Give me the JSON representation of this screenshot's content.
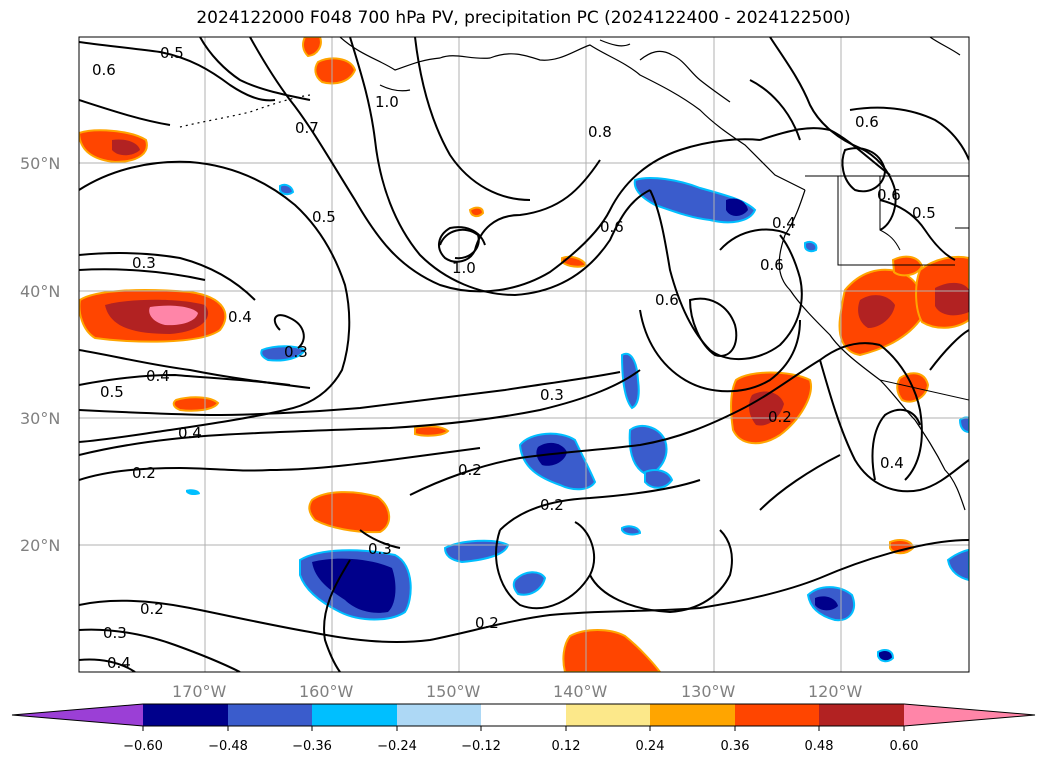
{
  "title": "2024122000 F048 700 hPa PV, precipitation PC (2024122400 - 2024122500)",
  "map": {
    "lon_labels": [
      "170°W",
      "160°W",
      "150°W",
      "140°W",
      "130°W",
      "120°W"
    ],
    "lat_labels": [
      "50°N",
      "40°N",
      "30°N",
      "20°N"
    ],
    "contour_labels": [
      "0.5",
      "0.6",
      "1.0",
      "0.7",
      "0.8",
      "0.6",
      "0.5",
      "1.0",
      "0.3",
      "0.4",
      "0.3",
      "0.4",
      "0.5",
      "0.4",
      "0.2",
      "0.6",
      "0.6",
      "0.4",
      "0.6",
      "0.3",
      "0.2",
      "0.2",
      "0.3",
      "0.2",
      "0.2",
      "0.3",
      "0.4",
      "0.6",
      "0.5",
      "0.2",
      "0.4"
    ]
  },
  "colorbar": {
    "colors": [
      "#9b3fd6",
      "#00008b",
      "#3a5ccc",
      "#00bfff",
      "#add8f5",
      "#ffffff",
      "#fce88a",
      "#ffa500",
      "#ff4500",
      "#b22222",
      "#ff85a8"
    ],
    "tick_labels": [
      "−0.60",
      "−0.48",
      "−0.36",
      "−0.24",
      "−0.12",
      "0.12",
      "0.24",
      "0.36",
      "0.48",
      "0.60"
    ]
  }
}
